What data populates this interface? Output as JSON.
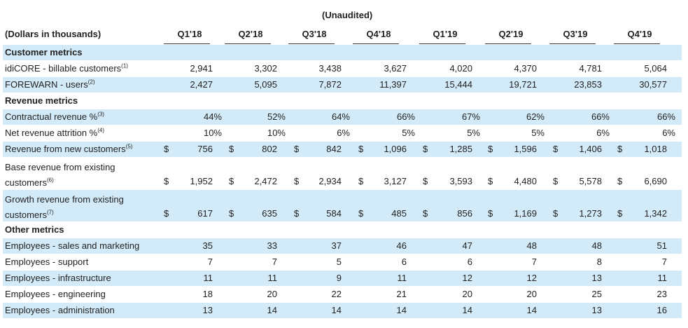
{
  "header": {
    "unaudited": "(Unaudited)",
    "dollars_label": "(Dollars in thousands)",
    "quarters": [
      "Q1'18",
      "Q2'18",
      "Q3'18",
      "Q4'18",
      "Q1'19",
      "Q2'19",
      "Q3'19",
      "Q4'19"
    ]
  },
  "rows": [
    {
      "type": "section",
      "label": "Customer metrics"
    },
    {
      "type": "data",
      "label": "idiCORE - billable customers",
      "note": "(1)",
      "values": [
        "2,941",
        "3,302",
        "3,438",
        "3,627",
        "4,020",
        "4,370",
        "4,781",
        "5,064"
      ]
    },
    {
      "type": "data",
      "label": "FOREWARN - users",
      "note": "(2)",
      "values": [
        "2,427",
        "5,095",
        "7,872",
        "11,397",
        "15,444",
        "19,721",
        "23,853",
        "30,577"
      ]
    },
    {
      "type": "section",
      "label": "Revenue metrics"
    },
    {
      "type": "pct",
      "label": "Contractual revenue %",
      "note": "(3)",
      "values": [
        "44%",
        "52%",
        "64%",
        "66%",
        "67%",
        "62%",
        "66%",
        "66%"
      ]
    },
    {
      "type": "pct",
      "label": "Net revenue attrition %",
      "note": "(4)",
      "values": [
        "10%",
        "10%",
        "6%",
        "5%",
        "5%",
        "5%",
        "6%",
        "6%"
      ]
    },
    {
      "type": "money",
      "label": "Revenue from new customers",
      "note": "(5)",
      "values": [
        "756",
        "802",
        "842",
        "1,096",
        "1,285",
        "1,596",
        "1,406",
        "1,018"
      ]
    },
    {
      "type": "money2",
      "label_line1": "Base revenue from existing",
      "label_line2": "customers",
      "note": "(6)",
      "values": [
        "1,952",
        "2,472",
        "2,934",
        "3,127",
        "3,593",
        "4,480",
        "5,578",
        "6,690"
      ]
    },
    {
      "type": "money2",
      "label_line1": "Growth revenue from existing",
      "label_line2": "customers",
      "note": "(7)",
      "values": [
        "617",
        "635",
        "584",
        "485",
        "856",
        "1,169",
        "1,273",
        "1,342"
      ]
    },
    {
      "type": "section",
      "label": "Other metrics"
    },
    {
      "type": "data",
      "label": "Employees - sales and marketing",
      "note": "",
      "values": [
        "35",
        "33",
        "37",
        "46",
        "47",
        "48",
        "48",
        "51"
      ]
    },
    {
      "type": "data",
      "label": "Employees - support",
      "note": "",
      "values": [
        "7",
        "7",
        "5",
        "6",
        "6",
        "7",
        "8",
        "7"
      ]
    },
    {
      "type": "data",
      "label": "Employees - infrastructure",
      "note": "",
      "values": [
        "11",
        "11",
        "9",
        "11",
        "12",
        "12",
        "13",
        "11"
      ]
    },
    {
      "type": "data",
      "label": "Employees - engineering",
      "note": "",
      "values": [
        "18",
        "20",
        "22",
        "21",
        "20",
        "20",
        "25",
        "23"
      ]
    },
    {
      "type": "data",
      "label": "Employees - administration",
      "note": "",
      "values": [
        "13",
        "14",
        "14",
        "14",
        "14",
        "14",
        "13",
        "16"
      ]
    }
  ],
  "currency_symbol": "$"
}
